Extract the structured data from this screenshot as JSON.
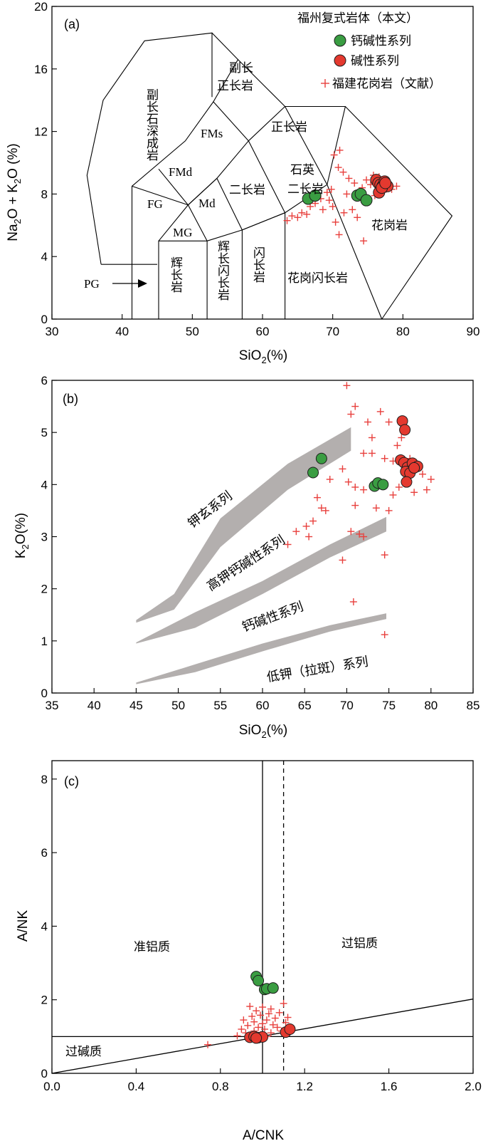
{
  "chart_data": [
    {
      "panel": "(a)",
      "type": "scatter",
      "subtype": "TAS classification diagram",
      "xlabel": "SiO2(%)",
      "ylabel": "Na2O + K2O (%)",
      "xlim": [
        30,
        90
      ],
      "ylim": [
        0,
        20
      ],
      "xticks": [
        30,
        40,
        50,
        60,
        70,
        80,
        90
      ],
      "yticks": [
        0,
        4,
        8,
        12,
        16,
        20
      ],
      "legend": {
        "title": "福州复式岩体（本文）",
        "entries": [
          {
            "name": "钙碱性系列",
            "marker": "circle",
            "color": "#3a9d42"
          },
          {
            "name": "碱性系列",
            "marker": "circle",
            "color": "#e4392f"
          },
          {
            "name": "福建花岗岩（文献）",
            "marker": "plus",
            "color": "#e8403d"
          }
        ],
        "position": "top-right"
      },
      "fields": [
        {
          "id": "syenitic-gabbroid",
          "label": "副长石深成岩",
          "poly": [
            [
              37,
              4.3
            ],
            [
              35,
              9.2
            ],
            [
              37.5,
              14
            ],
            [
              43.5,
              17.8
            ],
            [
              52.5,
              18.2
            ],
            [
              53,
              13.8
            ],
            [
              49,
              11.5
            ],
            [
              45,
              9
            ],
            [
              41.5,
              7.1
            ],
            [
              41,
              3.5
            ],
            [
              37,
              3.5
            ]
          ]
        },
        {
          "id": "pg",
          "label": "PG",
          "poly": []
        },
        {
          "id": "fg",
          "label": "FG",
          "poly": [
            [
              41,
              0
            ],
            [
              41,
              7
            ],
            [
              45,
              9.4
            ],
            [
              49.4,
              7.3
            ],
            [
              45,
              5
            ],
            [
              45,
              0
            ]
          ]
        },
        {
          "id": "fmd",
          "label": "FMd",
          "poly": [
            [
              45,
              9.4
            ],
            [
              48.4,
              11.5
            ],
            [
              52.5,
              14
            ],
            [
              49.4,
              7.3
            ]
          ]
        },
        {
          "id": "fms",
          "label": "FMs",
          "poly": [
            [
              48.4,
              11.5
            ],
            [
              53,
              14.1
            ],
            [
              57.6,
              11.7
            ],
            [
              53.5,
              9.3
            ]
          ]
        },
        {
          "id": "mg",
          "label": "MG",
          "poly": [
            [
              45,
              5
            ],
            [
              49.4,
              7.3
            ],
            [
              52,
              5
            ],
            [
              45,
              5
            ]
          ]
        },
        {
          "id": "md",
          "label": "Md",
          "poly": [
            [
              49.4,
              7.3
            ],
            [
              53.5,
              9.3
            ],
            [
              57,
              5.9
            ],
            [
              52,
              5
            ]
          ]
        },
        {
          "id": "monzonite",
          "label": "二长岩",
          "poly": []
        },
        {
          "id": "quartz-monzonite",
          "label": "石英二长岩",
          "poly": []
        },
        {
          "id": "syenite",
          "label": "正长岩",
          "poly": []
        },
        {
          "id": "foid-syenite",
          "label": "副长正长岩",
          "poly": []
        },
        {
          "id": "granite",
          "label": "花岗岩",
          "poly": []
        },
        {
          "id": "gabbro",
          "label": "辉长岩",
          "poly": []
        },
        {
          "id": "gabbro-diorite",
          "label": "辉长闪长岩",
          "poly": []
        },
        {
          "id": "diorite",
          "label": "闪长岩",
          "poly": []
        },
        {
          "id": "granodiorite",
          "label": "花岗闪长岩",
          "poly": []
        }
      ],
      "series": [
        {
          "name": "钙碱性系列",
          "points": [
            [
              66.5,
              7.7
            ],
            [
              67.5,
              7.9
            ],
            [
              73.5,
              7.9
            ],
            [
              74,
              8.0
            ],
            [
              74.8,
              7.6
            ]
          ]
        },
        {
          "name": "碱性系列",
          "points": [
            [
              76.2,
              8.9
            ],
            [
              76.5,
              8.7
            ],
            [
              76.8,
              8.6
            ],
            [
              77.1,
              8.5
            ],
            [
              77.4,
              8.8
            ],
            [
              77.8,
              8.5
            ],
            [
              76.6,
              8.1
            ],
            [
              77.0,
              8.4
            ],
            [
              77.5,
              8.7
            ]
          ]
        },
        {
          "name": "福建花岗岩（文献）",
          "points": [
            [
              63.5,
              6.3
            ],
            [
              64.2,
              6.6
            ],
            [
              65,
              6.5
            ],
            [
              65.6,
              6.8
            ],
            [
              66.3,
              6.7
            ],
            [
              66.8,
              7.2
            ],
            [
              67.5,
              7.4
            ],
            [
              68.3,
              7.7
            ],
            [
              69.2,
              8.1
            ],
            [
              69.8,
              8.3
            ],
            [
              70.2,
              10.5
            ],
            [
              70.8,
              9.7
            ],
            [
              71.5,
              9.4
            ],
            [
              72.3,
              9.0
            ],
            [
              73.1,
              8.7
            ],
            [
              74.2,
              8.4
            ],
            [
              75.4,
              8.6
            ],
            [
              76.6,
              9.1
            ],
            [
              78.4,
              8.3
            ],
            [
              79.1,
              8.5
            ],
            [
              70.4,
              6.2
            ],
            [
              70.9,
              5.4
            ],
            [
              71.6,
              6.8
            ],
            [
              72.8,
              7.0
            ],
            [
              73.5,
              6.5
            ],
            [
              74.4,
              5.0
            ],
            [
              75.1,
              7.5
            ],
            [
              76.0,
              7.9
            ],
            [
              77.6,
              8.3
            ],
            [
              69.5,
              7.6
            ],
            [
              68.6,
              7.0
            ],
            [
              67.1,
              8.0
            ],
            [
              71.0,
              10.8
            ],
            [
              72.0,
              8.0
            ],
            [
              70.0,
              7.2
            ],
            [
              74.8,
              8.9
            ],
            [
              75.8,
              9.2
            ]
          ]
        }
      ]
    },
    {
      "panel": "(b)",
      "type": "scatter",
      "subtype": "K2O vs SiO2 series diagram",
      "xlabel": "SiO2(%)",
      "ylabel": "K2O(%)",
      "xlim": [
        35,
        85
      ],
      "ylim": [
        0,
        6
      ],
      "xticks": [
        35,
        40,
        45,
        50,
        55,
        60,
        65,
        70,
        75,
        80,
        85
      ],
      "yticks": [
        0,
        1,
        2,
        3,
        4,
        5,
        6
      ],
      "series_labels": [
        "钾玄系列",
        "高钾钙碱性系列",
        "钙碱性系列",
        "低钾（拉斑）系列"
      ],
      "bands": [
        {
          "name": "shoshonite-highK",
          "upper": [
            [
              45,
              1.4
            ],
            [
              49.5,
              1.9
            ],
            [
              55,
              3.35
            ],
            [
              63,
              4.4
            ],
            [
              70.5,
              5.1
            ]
          ],
          "lower": [
            [
              70.5,
              4.65
            ],
            [
              63,
              3.9
            ],
            [
              55,
              2.8
            ],
            [
              49.5,
              1.6
            ],
            [
              45,
              1.35
            ]
          ]
        },
        {
          "name": "highK-calcalkaline",
          "upper": [
            [
              45,
              0.97
            ],
            [
              52,
              1.55
            ],
            [
              60,
              2.15
            ],
            [
              68,
              2.85
            ],
            [
              74.7,
              3.38
            ]
          ],
          "lower": [
            [
              74.7,
              3.1
            ],
            [
              68,
              2.6
            ],
            [
              60,
              1.9
            ],
            [
              52,
              1.25
            ],
            [
              45,
              0.95
            ]
          ]
        },
        {
          "name": "calcalkaline-lowK",
          "upper": [
            [
              45,
              0.2
            ],
            [
              52,
              0.55
            ],
            [
              60,
              0.95
            ],
            [
              68,
              1.3
            ],
            [
              74.7,
              1.53
            ]
          ],
          "lower": [
            [
              74.7,
              1.42
            ],
            [
              68,
              1.18
            ],
            [
              60,
              0.8
            ],
            [
              52,
              0.4
            ],
            [
              45,
              0.17
            ]
          ]
        }
      ],
      "series": [
        {
          "name": "钙碱性系列",
          "points": [
            [
              66,
              4.23
            ],
            [
              67,
              4.5
            ],
            [
              73.3,
              3.97
            ],
            [
              73.7,
              4.03
            ],
            [
              74.3,
              4.0
            ]
          ]
        },
        {
          "name": "碱性系列",
          "points": [
            [
              76.6,
              5.22
            ],
            [
              76.9,
              5.05
            ],
            [
              76.4,
              4.47
            ],
            [
              76.8,
              4.42
            ],
            [
              77.2,
              4.33
            ],
            [
              77.8,
              4.41
            ],
            [
              78.4,
              4.35
            ],
            [
              77.0,
              4.25
            ],
            [
              77.5,
              4.22
            ],
            [
              78.0,
              4.32
            ],
            [
              77.1,
              4.05
            ]
          ]
        },
        {
          "name": "福建花岗岩（文献）",
          "points": [
            [
              70,
              5.9
            ],
            [
              70.5,
              5.35
            ],
            [
              71,
              5.5
            ],
            [
              72.5,
              5.2
            ],
            [
              74,
              5.4
            ],
            [
              75,
              5.2
            ],
            [
              76,
              4.75
            ],
            [
              76.5,
              4.9
            ],
            [
              77.5,
              4.5
            ],
            [
              79,
              4.2
            ],
            [
              80,
              4.1
            ],
            [
              79.5,
              3.9
            ],
            [
              78,
              3.85
            ],
            [
              69.5,
              4.3
            ],
            [
              70.2,
              4.05
            ],
            [
              71,
              3.95
            ],
            [
              72,
              3.9
            ],
            [
              73,
              4.6
            ],
            [
              74.5,
              4.5
            ],
            [
              75.5,
              4.45
            ],
            [
              68,
              4.1
            ],
            [
              67,
              3.55
            ],
            [
              66.5,
              3.75
            ],
            [
              66,
              3.3
            ],
            [
              65.2,
              3.2
            ],
            [
              64,
              3.1
            ],
            [
              63,
              2.85
            ],
            [
              65.5,
              3.0
            ],
            [
              70.5,
              3.1
            ],
            [
              71.5,
              3.05
            ],
            [
              72,
              3.0
            ],
            [
              69.5,
              2.55
            ],
            [
              74.5,
              2.65
            ],
            [
              70.8,
              1.75
            ],
            [
              74.5,
              1.12
            ],
            [
              75,
              3.5
            ],
            [
              73.5,
              3.55
            ],
            [
              67.5,
              3.5
            ],
            [
              76.2,
              3.95
            ],
            [
              75.5,
              3.8
            ],
            [
              72,
              4.6
            ],
            [
              73,
              4.9
            ],
            [
              71,
              3.6
            ]
          ]
        }
      ]
    },
    {
      "panel": "(c)",
      "type": "scatter",
      "subtype": "A/NK vs A/CNK diagram",
      "xlabel": "A/CNK",
      "ylabel": "A/NK",
      "xlim": [
        0.0,
        2.0
      ],
      "ylim": [
        0,
        8.5
      ],
      "xticks": [
        "0.0",
        "0.4",
        "0.8",
        "1.2",
        "1.6",
        "2.0"
      ],
      "yticks": [
        0,
        2,
        4,
        6,
        8
      ],
      "field_labels": [
        "准铝质",
        "过铝质",
        "过碱质"
      ],
      "reference_lines": {
        "vertical_solid": 1.0,
        "vertical_dashed": 1.1,
        "horizontal": 1.0,
        "diagonal": [
          [
            0,
            0
          ],
          [
            2.0,
            2.02
          ]
        ]
      },
      "series": [
        {
          "name": "钙碱性系列",
          "points": [
            [
              0.97,
              2.63
            ],
            [
              0.98,
              2.52
            ],
            [
              1.01,
              2.28
            ],
            [
              1.02,
              2.3
            ],
            [
              1.05,
              2.32
            ]
          ]
        },
        {
          "name": "碱性系列",
          "points": [
            [
              0.94,
              0.98
            ],
            [
              0.96,
              1.0
            ],
            [
              0.98,
              0.97
            ],
            [
              1.0,
              0.99
            ],
            [
              0.97,
              0.96
            ],
            [
              1.11,
              1.12
            ],
            [
              1.13,
              1.2
            ]
          ]
        },
        {
          "name": "福建花岗岩（文献）",
          "points": [
            [
              0.74,
              0.78
            ],
            [
              0.88,
              1.02
            ],
            [
              0.92,
              1.1
            ],
            [
              0.93,
              1.3
            ],
            [
              0.94,
              1.82
            ],
            [
              0.95,
              1.55
            ],
            [
              0.96,
              1.4
            ],
            [
              0.97,
              1.7
            ],
            [
              0.98,
              1.25
            ],
            [
              0.99,
              1.58
            ],
            [
              1.0,
              1.8
            ],
            [
              1.01,
              1.2
            ],
            [
              1.02,
              1.45
            ],
            [
              1.03,
              1.62
            ],
            [
              1.04,
              1.1
            ],
            [
              1.05,
              1.32
            ],
            [
              1.06,
              1.5
            ],
            [
              1.07,
              1.25
            ],
            [
              1.08,
              1.65
            ],
            [
              1.09,
              1.15
            ],
            [
              1.1,
              1.9
            ],
            [
              1.11,
              1.38
            ],
            [
              1.12,
              1.52
            ],
            [
              0.9,
              1.2
            ],
            [
              0.91,
              1.45
            ],
            [
              0.99,
              1.05
            ],
            [
              1.02,
              1.0
            ],
            [
              0.96,
              1.15
            ],
            [
              1.0,
              1.35
            ],
            [
              1.04,
              1.75
            ]
          ]
        }
      ]
    }
  ],
  "legend_entries": [
    "钙碱性系列",
    "碱性系列",
    "福建花岗岩（文献）"
  ],
  "colors": {
    "calcalkaline": "#3a9d42",
    "alkaline": "#e4392f",
    "literature": "#e8403d",
    "band": "#b3afae"
  }
}
